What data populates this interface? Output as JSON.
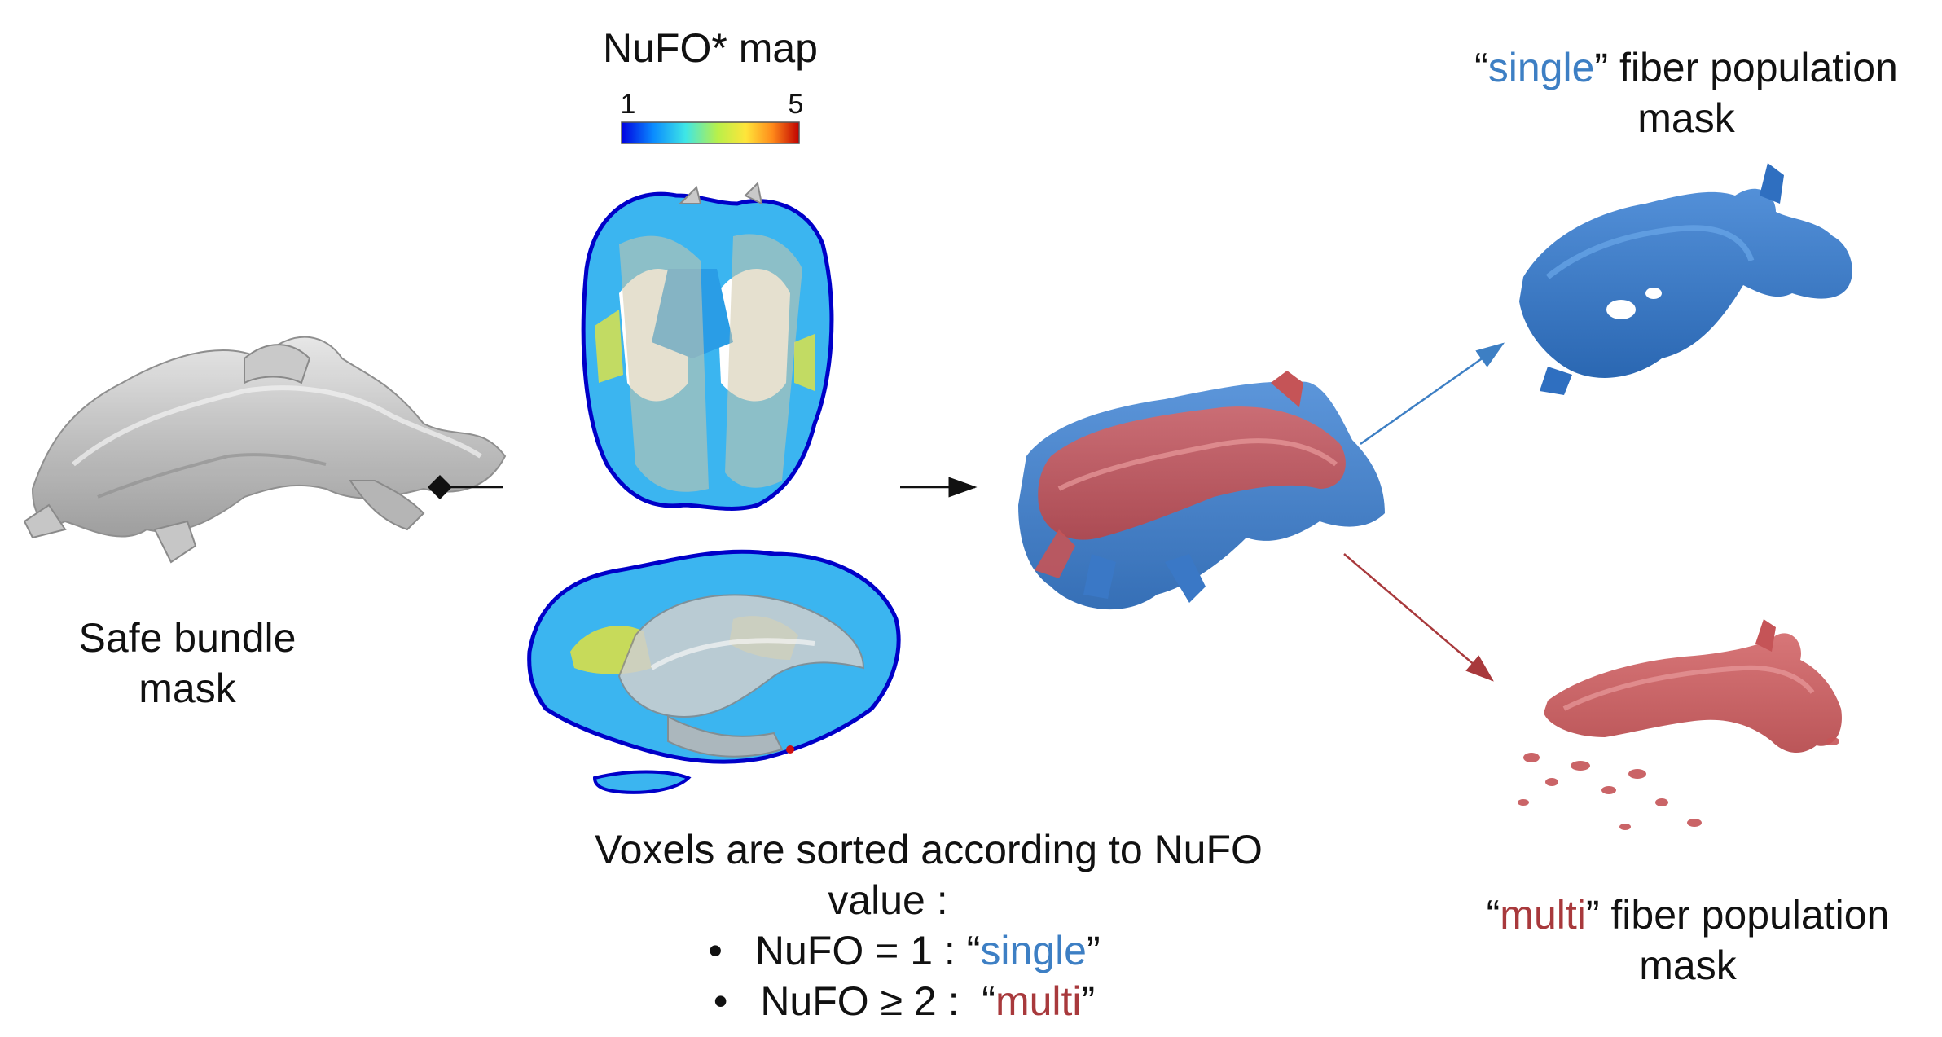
{
  "nufo_map": {
    "title": "NuFO* map",
    "colorbar_min": "1",
    "colorbar_max": "5",
    "colors": [
      "#0000e0",
      "#0a8cff",
      "#3ee6e6",
      "#b8f04a",
      "#ffe53a",
      "#ff8a1a",
      "#d01010"
    ]
  },
  "safe_bundle": {
    "label_line1": "Safe bundle",
    "label_line2": "mask"
  },
  "single_mask": {
    "open_quote": "“",
    "keyword": "single",
    "close_rest": "” fiber population",
    "line2": "mask",
    "color": "#3d7fc4"
  },
  "multi_mask": {
    "open_quote": "“",
    "keyword": "multi",
    "close_rest": "” fiber population",
    "line2": "mask",
    "color": "#a8393c"
  },
  "sort_text": {
    "line1": "Voxels are sorted according to NuFO",
    "line2": "value :",
    "bullet": "•",
    "b1_prefix": "NuFO = 1 : “",
    "b1_keyword": "single",
    "b1_suffix": "”",
    "b2_prefix": "NuFO ≥ 2 :  “",
    "b2_keyword": "multi",
    "b2_suffix": "”"
  }
}
